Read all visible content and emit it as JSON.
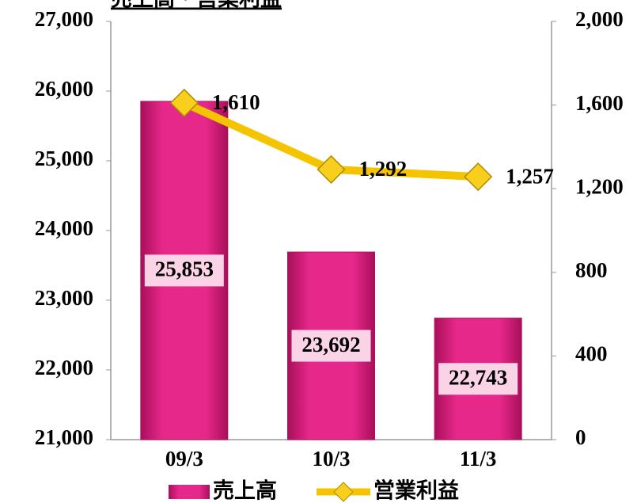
{
  "chart_data": {
    "type": "bar",
    "title": "売上高・営業利益",
    "categories": [
      "09/3",
      "10/3",
      "11/3"
    ],
    "series": [
      {
        "name": "売上高",
        "type": "bar",
        "color": "#e0207f",
        "values": [
          25853,
          23692,
          22743
        ],
        "value_labels": [
          "25,853",
          "23,692",
          "22,743"
        ]
      },
      {
        "name": "営業利益",
        "type": "line",
        "axis": "y2",
        "color": "#f5c400",
        "values": [
          1610,
          1292,
          1257
        ],
        "value_labels": [
          "1,610",
          "1,292",
          "1,257"
        ]
      }
    ],
    "ylim": [
      21000,
      27000
    ],
    "yticks": [
      {
        "value": 21000,
        "label": "21,000"
      },
      {
        "value": 22000,
        "label": "22,000"
      },
      {
        "value": 23000,
        "label": "23,000"
      },
      {
        "value": 24000,
        "label": "24,000"
      },
      {
        "value": 25000,
        "label": "25,000"
      },
      {
        "value": 26000,
        "label": "26,000"
      },
      {
        "value": 27000,
        "label": "27,000"
      }
    ],
    "y2lim": [
      0,
      2000
    ],
    "y2ticks": [
      0,
      400,
      800,
      {
        "value": 1200,
        "label": "1,200"
      },
      {
        "value": 1600,
        "label": "1,600"
      },
      {
        "value": 2000,
        "label": "2,000"
      }
    ],
    "grid": false,
    "legend": "bottom"
  }
}
